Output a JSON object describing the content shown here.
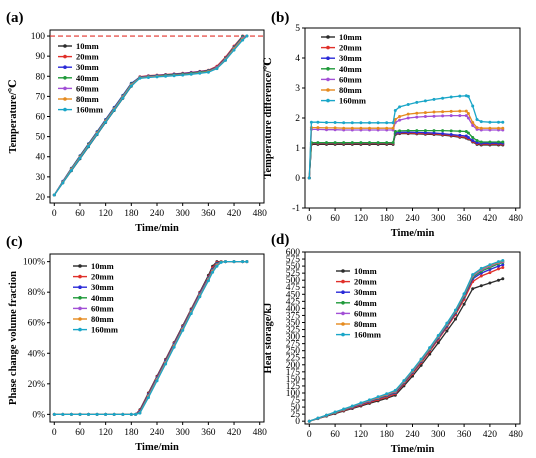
{
  "chart_data": [
    {
      "panel": "(a)",
      "type": "line",
      "xlabel": "Time/min",
      "ylabel": "Temperature/℃",
      "xlim": [
        -10,
        490
      ],
      "ylim": [
        17,
        103
      ],
      "xticks": [
        0,
        60,
        120,
        180,
        240,
        300,
        360,
        420,
        480
      ],
      "yticks": [
        20,
        30,
        40,
        50,
        60,
        70,
        80,
        90,
        100
      ],
      "reference_line": {
        "y": 100,
        "style": "dashed",
        "color": "#e0302a"
      },
      "legend_position": "left",
      "x": [
        0,
        20,
        40,
        60,
        80,
        100,
        120,
        140,
        160,
        180,
        200,
        220,
        240,
        260,
        280,
        300,
        320,
        340,
        360,
        380,
        400,
        420,
        440,
        450
      ],
      "series": [
        {
          "name": "10mm",
          "values": [
            21,
            27,
            33,
            39,
            45,
            51,
            57,
            63,
            69,
            75,
            79.5,
            80,
            80.3,
            80.6,
            80.9,
            81.2,
            81.6,
            82,
            82.5,
            84,
            88,
            94,
            99.5,
            null
          ]
        },
        {
          "name": "20mm",
          "values": [
            21,
            27.5,
            34,
            40,
            46,
            52,
            58,
            64,
            70,
            76,
            79.8,
            80.3,
            80.6,
            80.9,
            81.2,
            81.5,
            81.9,
            82.4,
            83,
            85,
            89.5,
            95,
            100,
            null
          ]
        },
        {
          "name": "30mm",
          "values": [
            21,
            27.8,
            34.3,
            40.5,
            46.5,
            52.5,
            58.5,
            64.5,
            70.5,
            76.5,
            79.6,
            80.1,
            80.4,
            80.7,
            81,
            81.3,
            81.7,
            82.2,
            82.8,
            84.5,
            89,
            94.5,
            99.8,
            null
          ]
        },
        {
          "name": "40mm",
          "values": [
            21,
            27.6,
            34.1,
            40.2,
            46.2,
            52.2,
            58.2,
            64.2,
            70.2,
            76.2,
            79.4,
            79.9,
            80.2,
            80.5,
            80.8,
            81.1,
            81.5,
            82,
            82.6,
            84.3,
            88.8,
            94.2,
            99.6,
            null
          ]
        },
        {
          "name": "60mm",
          "values": [
            21,
            27.4,
            33.8,
            39.8,
            45.8,
            51.8,
            57.8,
            63.8,
            69.8,
            75.8,
            79.3,
            79.7,
            80,
            80.2,
            80.5,
            80.8,
            81.2,
            81.7,
            82.3,
            84.2,
            88.5,
            93.8,
            99,
            100
          ]
        },
        {
          "name": "80mm",
          "values": [
            21,
            27.2,
            33.5,
            39.5,
            45.5,
            51.5,
            57.5,
            63.5,
            69.5,
            75.5,
            79.2,
            79.6,
            79.9,
            80.1,
            80.4,
            80.7,
            81.1,
            81.6,
            82.2,
            84,
            88.2,
            93.5,
            98.5,
            100
          ]
        },
        {
          "name": "160mm",
          "values": [
            21,
            27,
            33.2,
            39.2,
            45.2,
            51.2,
            57.2,
            63.2,
            69.2,
            75.2,
            79,
            79.4,
            79.7,
            80,
            80.3,
            80.6,
            81,
            81.5,
            82,
            83.8,
            88,
            93,
            98,
            100
          ]
        }
      ]
    },
    {
      "panel": "(b)",
      "type": "line",
      "xlabel": "Time/min",
      "ylabel": "Temperature difference/℃",
      "xlim": [
        -10,
        490
      ],
      "ylim": [
        -1,
        5
      ],
      "xticks": [
        0,
        60,
        120,
        180,
        240,
        300,
        360,
        420,
        480
      ],
      "yticks": [
        -1,
        0,
        1,
        2,
        3,
        4,
        5
      ],
      "legend_position": "top-left",
      "x": [
        0,
        5,
        20,
        40,
        60,
        80,
        100,
        120,
        140,
        160,
        180,
        195,
        200,
        210,
        230,
        250,
        270,
        290,
        310,
        330,
        350,
        365,
        370,
        380,
        390,
        400,
        420,
        440,
        450
      ],
      "series": [
        {
          "name": "10mm",
          "values": [
            0,
            1.12,
            1.12,
            1.12,
            1.12,
            1.12,
            1.12,
            1.12,
            1.12,
            1.12,
            1.12,
            1.12,
            1.45,
            1.48,
            1.48,
            1.47,
            1.46,
            1.45,
            1.43,
            1.4,
            1.36,
            1.33,
            1.3,
            1.2,
            1.12,
            1.1,
            1.1,
            1.1,
            1.1
          ]
        },
        {
          "name": "20mm",
          "values": [
            0,
            1.15,
            1.15,
            1.15,
            1.15,
            1.15,
            1.15,
            1.15,
            1.15,
            1.15,
            1.15,
            1.15,
            1.48,
            1.5,
            1.5,
            1.49,
            1.48,
            1.47,
            1.45,
            1.42,
            1.38,
            1.36,
            1.32,
            1.22,
            1.15,
            1.13,
            1.13,
            1.13,
            1.13
          ]
        },
        {
          "name": "30mm",
          "values": [
            0,
            1.17,
            1.17,
            1.17,
            1.17,
            1.17,
            1.17,
            1.17,
            1.17,
            1.17,
            1.17,
            1.17,
            1.5,
            1.52,
            1.53,
            1.52,
            1.51,
            1.5,
            1.48,
            1.45,
            1.42,
            1.4,
            1.35,
            1.25,
            1.18,
            1.16,
            1.16,
            1.16,
            1.16
          ]
        },
        {
          "name": "40mm",
          "values": [
            0,
            1.18,
            1.18,
            1.18,
            1.18,
            1.18,
            1.18,
            1.18,
            1.18,
            1.18,
            1.18,
            1.18,
            1.55,
            1.57,
            1.58,
            1.58,
            1.58,
            1.58,
            1.58,
            1.57,
            1.56,
            1.55,
            1.5,
            1.35,
            1.25,
            1.2,
            1.2,
            1.2,
            1.2
          ]
        },
        {
          "name": "60mm",
          "values": [
            0,
            1.62,
            1.62,
            1.61,
            1.61,
            1.6,
            1.6,
            1.6,
            1.6,
            1.6,
            1.6,
            1.6,
            1.85,
            1.93,
            2,
            2.03,
            2.05,
            2.06,
            2.07,
            2.08,
            2.08,
            2.08,
            2,
            1.75,
            1.62,
            1.6,
            1.6,
            1.6,
            1.6
          ]
        },
        {
          "name": "80mm",
          "values": [
            0,
            1.68,
            1.68,
            1.67,
            1.67,
            1.66,
            1.66,
            1.66,
            1.66,
            1.66,
            1.66,
            1.66,
            1.95,
            2.05,
            2.13,
            2.16,
            2.18,
            2.2,
            2.21,
            2.22,
            2.23,
            2.23,
            2.15,
            1.85,
            1.68,
            1.66,
            1.66,
            1.66,
            1.66
          ]
        },
        {
          "name": "160mm",
          "values": [
            0,
            1.86,
            1.86,
            1.85,
            1.85,
            1.84,
            1.84,
            1.84,
            1.84,
            1.84,
            1.84,
            1.84,
            2.25,
            2.37,
            2.45,
            2.52,
            2.57,
            2.62,
            2.66,
            2.7,
            2.73,
            2.74,
            2.72,
            2.4,
            1.95,
            1.88,
            1.86,
            1.86,
            1.86
          ]
        }
      ]
    },
    {
      "panel": "(c)",
      "type": "line",
      "xlabel": "Time/min",
      "ylabel": "Phase change volume fraction",
      "xlim": [
        -10,
        490
      ],
      "ylim": [
        -5,
        105
      ],
      "xticks": [
        0,
        60,
        120,
        180,
        240,
        300,
        360,
        420,
        480
      ],
      "yticks": [
        0,
        20,
        40,
        60,
        80,
        100
      ],
      "ytick_labels": [
        "0%",
        "20%",
        "40%",
        "60%",
        "80%",
        "100%"
      ],
      "legend_position": "top-left",
      "x": [
        0,
        20,
        40,
        60,
        80,
        100,
        120,
        140,
        160,
        180,
        190,
        200,
        220,
        240,
        260,
        280,
        300,
        320,
        340,
        360,
        370,
        380,
        390,
        400,
        420,
        440,
        450
      ],
      "series": [
        {
          "name": "10mm",
          "values": [
            0,
            0,
            0,
            0,
            0,
            0,
            0,
            0,
            0,
            0,
            0,
            3,
            14,
            25,
            36,
            47,
            58,
            69,
            80,
            91,
            97,
            100,
            100,
            100,
            100,
            100,
            100
          ]
        },
        {
          "name": "20mm",
          "values": [
            0,
            0,
            0,
            0,
            0,
            0,
            0,
            0,
            0,
            0,
            0,
            2.5,
            13.5,
            24.5,
            35.5,
            46.5,
            57.5,
            68.5,
            79.5,
            90,
            96,
            99.5,
            100,
            100,
            100,
            100,
            100
          ]
        },
        {
          "name": "30mm",
          "values": [
            0,
            0,
            0,
            0,
            0,
            0,
            0,
            0,
            0,
            0,
            0,
            2,
            13,
            24,
            35,
            46,
            57,
            68,
            79,
            89.5,
            95,
            99,
            100,
            100,
            100,
            100,
            100
          ]
        },
        {
          "name": "40mm",
          "values": [
            0,
            0,
            0,
            0,
            0,
            0,
            0,
            0,
            0,
            0,
            0,
            1.5,
            12.5,
            23.5,
            34.5,
            45.5,
            56.5,
            67.5,
            78.5,
            89,
            94.5,
            98.5,
            100,
            100,
            100,
            100,
            100
          ]
        },
        {
          "name": "60mm",
          "values": [
            0,
            0,
            0,
            0,
            0,
            0,
            0,
            0,
            0,
            0,
            0,
            1.2,
            12,
            23,
            34,
            45,
            56,
            67,
            78,
            88.5,
            94,
            98,
            100,
            100,
            100,
            100,
            100
          ]
        },
        {
          "name": "80mm",
          "values": [
            0,
            0,
            0,
            0,
            0,
            0,
            0,
            0,
            0,
            0,
            0,
            1,
            11.5,
            22.5,
            33.5,
            44.5,
            55.5,
            66.5,
            77.5,
            88,
            93.5,
            97.5,
            99.8,
            100,
            100,
            100,
            100
          ]
        },
        {
          "name": "160mm",
          "values": [
            0,
            0,
            0,
            0,
            0,
            0,
            0,
            0,
            0,
            0,
            0,
            0.8,
            11,
            22,
            33,
            44,
            55,
            66,
            77,
            87.5,
            93,
            97,
            99.5,
            100,
            100,
            100,
            100
          ]
        }
      ]
    },
    {
      "panel": "(d)",
      "type": "line",
      "xlabel": "Time/min",
      "ylabel": "Heat storage/kJ",
      "xlim": [
        -10,
        490
      ],
      "ylim": [
        -10,
        600
      ],
      "xticks": [
        0,
        60,
        120,
        180,
        240,
        300,
        360,
        420,
        480
      ],
      "yticks": [
        0,
        25,
        50,
        75,
        100,
        125,
        150,
        175,
        200,
        225,
        250,
        275,
        300,
        325,
        350,
        375,
        400,
        425,
        450,
        475,
        500,
        525,
        550,
        575,
        600
      ],
      "legend_position": "top-left",
      "x": [
        0,
        20,
        40,
        60,
        80,
        100,
        120,
        140,
        160,
        180,
        200,
        220,
        240,
        260,
        280,
        300,
        320,
        340,
        360,
        380,
        400,
        420,
        440,
        450
      ],
      "series": [
        {
          "name": "10mm",
          "values": [
            0,
            9,
            18,
            27,
            36,
            45,
            54,
            63,
            72,
            81,
            92,
            125,
            160,
            198,
            238,
            278,
            320,
            362,
            415,
            470,
            480,
            490,
            500,
            505
          ]
        },
        {
          "name": "20mm",
          "values": [
            0,
            9.5,
            19,
            28.5,
            38,
            47.5,
            57,
            66.5,
            76,
            85.5,
            97,
            132,
            168,
            207,
            248,
            290,
            333,
            378,
            432,
            495,
            515,
            527,
            540,
            545
          ]
        },
        {
          "name": "30mm",
          "values": [
            0,
            10,
            20,
            30,
            40,
            50,
            60,
            70,
            80,
            90,
            101,
            136,
            173,
            212,
            253,
            295,
            338,
            384,
            440,
            505,
            525,
            538,
            550,
            555
          ]
        },
        {
          "name": "40mm",
          "values": [
            0,
            10.2,
            20.4,
            30.6,
            40.8,
            51,
            61.2,
            71.4,
            81.6,
            91.8,
            103,
            138,
            175,
            214,
            255,
            298,
            341,
            387,
            443,
            510,
            532,
            545,
            558,
            563
          ]
        },
        {
          "name": "60mm",
          "values": [
            0,
            10.4,
            20.8,
            31.2,
            41.6,
            52,
            62.4,
            72.8,
            83.2,
            93.6,
            105,
            140,
            177,
            216,
            257,
            300,
            344,
            390,
            447,
            515,
            537,
            550,
            562,
            566
          ]
        },
        {
          "name": "80mm",
          "values": [
            0,
            10.6,
            21.2,
            31.8,
            42.4,
            53,
            63.6,
            74.2,
            84.8,
            95.4,
            107,
            142,
            179,
            218,
            259,
            302,
            346,
            392,
            450,
            518,
            540,
            553,
            564,
            568
          ]
        },
        {
          "name": "160mm",
          "values": [
            0,
            10.8,
            21.6,
            32.4,
            43.2,
            54,
            64.8,
            75.6,
            86.4,
            97.2,
            109,
            144,
            181,
            220,
            261,
            304,
            348,
            394,
            452,
            520,
            542,
            555,
            566,
            570
          ]
        }
      ]
    }
  ],
  "series_colors": [
    "#2b2b2b",
    "#e0302a",
    "#2a2ad8",
    "#1f9a3a",
    "#a24fd6",
    "#e58a1e",
    "#1aa6c8"
  ]
}
